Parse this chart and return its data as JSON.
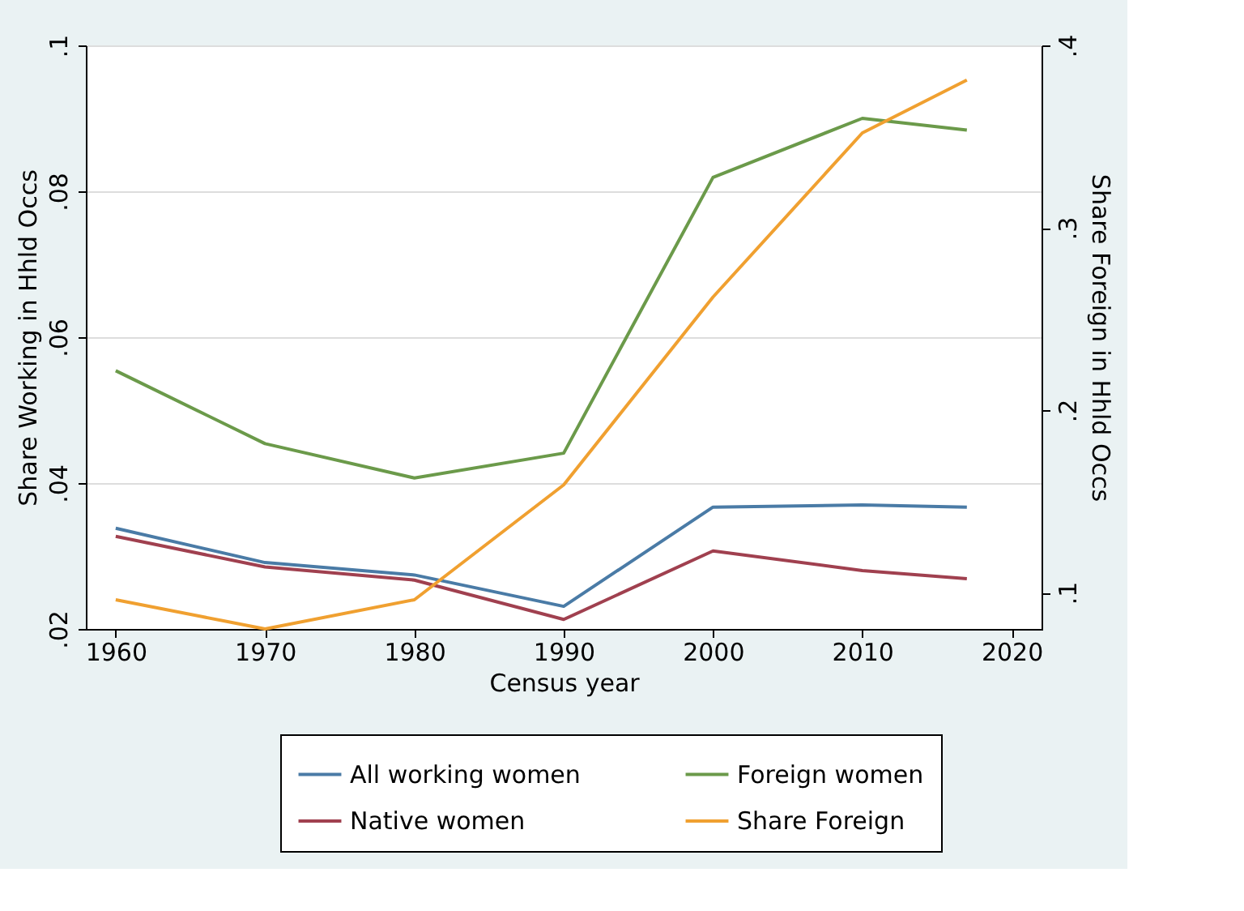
{
  "chart_data": {
    "type": "line",
    "xlabel": "Census year",
    "ylabel": "Share Working in Hhld Occs",
    "y2label": "Share Foreign in Hhld Occs",
    "x": [
      1960,
      1970,
      1980,
      1990,
      2000,
      2010,
      2017
    ],
    "series": [
      {
        "name": "All working women",
        "color": "#4a7ba6",
        "values": [
          0.0338,
          0.0291,
          0.0274,
          0.0231,
          0.0367,
          0.037,
          0.0367
        ]
      },
      {
        "name": "Native women",
        "color": "#a0404f",
        "values": [
          0.0327,
          0.0285,
          0.0267,
          0.0213,
          0.0307,
          0.028,
          0.0269
        ]
      },
      {
        "name": "Foreign women",
        "color": "#6b9a4a",
        "values": [
          0.0554,
          0.0454,
          0.0407,
          0.0441,
          0.0819,
          0.09,
          0.0884
        ]
      },
      {
        "name": "Share Foreign",
        "color": "#f0a030",
        "axis": "y2",
        "values": [
          0.096,
          0.08,
          0.096,
          0.159,
          0.262,
          0.352,
          0.381
        ]
      }
    ],
    "xlim": [
      1958,
      2022
    ],
    "xticks": [
      1960,
      1970,
      1980,
      1990,
      2000,
      2010,
      2020
    ],
    "ylim": [
      0.02,
      0.1
    ],
    "yticks": [
      {
        "value": 0.02,
        "label": ".02"
      },
      {
        "value": 0.04,
        "label": ".04"
      },
      {
        "value": 0.06,
        "label": ".06"
      },
      {
        "value": 0.08,
        "label": ".08"
      },
      {
        "value": 0.1,
        "label": ".1"
      }
    ],
    "y2lim": [
      0.08,
      0.4
    ],
    "y2ticks": [
      {
        "value": 0.1,
        "label": ".1"
      },
      {
        "value": 0.2,
        "label": ".2"
      },
      {
        "value": 0.3,
        "label": ".3"
      },
      {
        "value": 0.4,
        "label": ".4"
      }
    ],
    "grid": "y",
    "legend": "bottom",
    "marker": "none",
    "line_style": "solid"
  }
}
